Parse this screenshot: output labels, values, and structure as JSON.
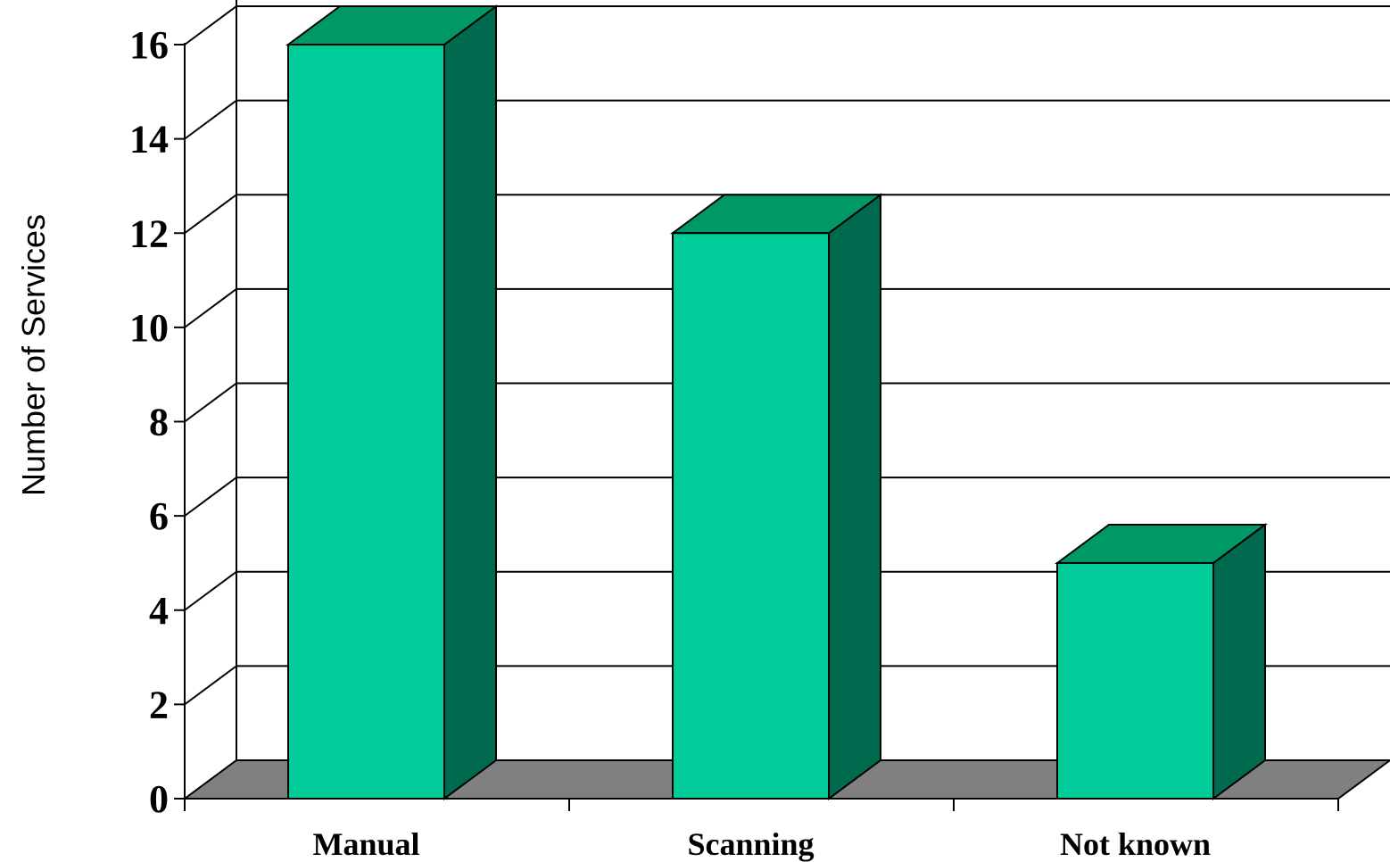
{
  "chart_data": {
    "type": "bar",
    "style": "3d",
    "title": "",
    "xlabel": "",
    "ylabel": "Number of Services",
    "categories": [
      "Manual",
      "Scanning",
      "Not known"
    ],
    "values": [
      16,
      12,
      5
    ],
    "ylim": [
      0,
      16
    ],
    "yticks": [
      0,
      2,
      4,
      6,
      8,
      10,
      12,
      14,
      16
    ],
    "grid": true,
    "legend": "none",
    "colors": {
      "bar_front": "#00CC99",
      "bar_top": "#009966",
      "bar_side": "#006A4E",
      "floor": "#808080",
      "grid": "#000000"
    }
  }
}
